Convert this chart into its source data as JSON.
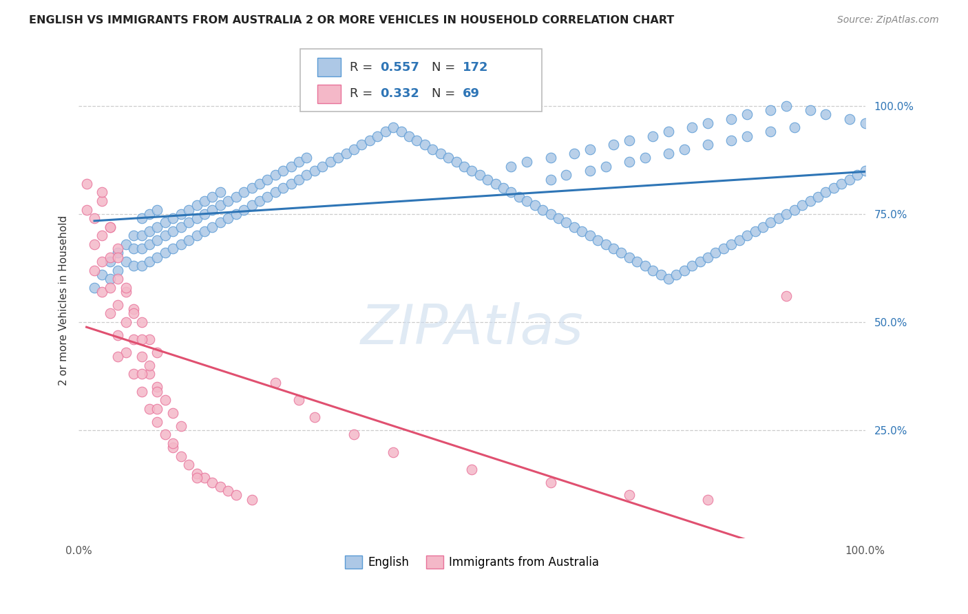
{
  "title": "ENGLISH VS IMMIGRANTS FROM AUSTRALIA 2 OR MORE VEHICLES IN HOUSEHOLD CORRELATION CHART",
  "source": "Source: ZipAtlas.com",
  "ylabel": "2 or more Vehicles in Household",
  "xlim": [
    0,
    100
  ],
  "ylim": [
    0,
    110
  ],
  "ytick_positions": [
    25,
    50,
    75,
    100
  ],
  "ytick_labels": [
    "25.0%",
    "50.0%",
    "75.0%",
    "100.0%"
  ],
  "grid_color": "#cccccc",
  "background_color": "#ffffff",
  "blue_color": "#adc8e6",
  "blue_edge": "#5b9bd5",
  "pink_color": "#f4b8c8",
  "pink_edge": "#e8729a",
  "blue_line_color": "#2e75b6",
  "pink_line_color": "#e05070",
  "legend_R_blue": "0.557",
  "legend_N_blue": "172",
  "legend_R_pink": "0.332",
  "legend_N_pink": "69",
  "english_x": [
    2,
    3,
    4,
    4,
    5,
    5,
    6,
    6,
    7,
    7,
    7,
    8,
    8,
    8,
    8,
    9,
    9,
    9,
    9,
    10,
    10,
    10,
    10,
    11,
    11,
    11,
    12,
    12,
    12,
    13,
    13,
    13,
    14,
    14,
    14,
    15,
    15,
    15,
    16,
    16,
    16,
    17,
    17,
    17,
    18,
    18,
    18,
    19,
    19,
    20,
    20,
    21,
    21,
    22,
    22,
    23,
    23,
    24,
    24,
    25,
    25,
    26,
    26,
    27,
    27,
    28,
    28,
    29,
    29,
    30,
    31,
    32,
    33,
    34,
    35,
    36,
    37,
    38,
    39,
    40,
    41,
    42,
    43,
    44,
    45,
    46,
    47,
    48,
    49,
    50,
    51,
    52,
    53,
    54,
    55,
    56,
    57,
    58,
    59,
    60,
    61,
    62,
    63,
    64,
    65,
    66,
    67,
    68,
    69,
    70,
    71,
    72,
    73,
    74,
    75,
    76,
    77,
    78,
    79,
    80,
    81,
    82,
    83,
    84,
    85,
    86,
    87,
    88,
    89,
    90,
    91,
    92,
    93,
    94,
    95,
    96,
    97,
    98,
    99,
    100,
    55,
    57,
    60,
    63,
    65,
    68,
    70,
    73,
    75,
    78,
    80,
    83,
    85,
    88,
    90,
    93,
    95,
    98,
    100,
    91,
    88,
    85,
    83,
    80,
    77,
    75,
    72,
    70,
    67,
    65,
    62,
    60
  ],
  "english_y": [
    58,
    61,
    60,
    64,
    62,
    66,
    64,
    68,
    63,
    67,
    70,
    63,
    67,
    70,
    74,
    64,
    68,
    71,
    75,
    65,
    69,
    72,
    76,
    66,
    70,
    73,
    67,
    71,
    74,
    68,
    72,
    75,
    69,
    73,
    76,
    70,
    74,
    77,
    71,
    75,
    78,
    72,
    76,
    79,
    73,
    77,
    80,
    74,
    78,
    75,
    79,
    76,
    80,
    77,
    81,
    78,
    82,
    79,
    83,
    80,
    84,
    81,
    85,
    82,
    86,
    83,
    87,
    84,
    88,
    85,
    86,
    87,
    88,
    89,
    90,
    91,
    92,
    93,
    94,
    95,
    94,
    93,
    92,
    91,
    90,
    89,
    88,
    87,
    86,
    85,
    84,
    83,
    82,
    81,
    80,
    79,
    78,
    77,
    76,
    75,
    74,
    73,
    72,
    71,
    70,
    69,
    68,
    67,
    66,
    65,
    64,
    63,
    62,
    61,
    60,
    61,
    62,
    63,
    64,
    65,
    66,
    67,
    68,
    69,
    70,
    71,
    72,
    73,
    74,
    75,
    76,
    77,
    78,
    79,
    80,
    81,
    82,
    83,
    84,
    85,
    86,
    87,
    88,
    89,
    90,
    91,
    92,
    93,
    94,
    95,
    96,
    97,
    98,
    99,
    100,
    99,
    98,
    97,
    96,
    95,
    94,
    93,
    92,
    91,
    90,
    89,
    88,
    87,
    86,
    85,
    84,
    83
  ],
  "immigrant_x": [
    1,
    1,
    2,
    2,
    2,
    3,
    3,
    3,
    3,
    4,
    4,
    4,
    4,
    5,
    5,
    5,
    5,
    6,
    6,
    6,
    7,
    7,
    7,
    8,
    8,
    8,
    9,
    9,
    9,
    10,
    10,
    10,
    11,
    11,
    12,
    12,
    13,
    13,
    14,
    15,
    16,
    17,
    18,
    19,
    20,
    22,
    25,
    28,
    30,
    35,
    40,
    50,
    60,
    70,
    80,
    90,
    5,
    8,
    10,
    12,
    15,
    3,
    4,
    5,
    6,
    7,
    8,
    9,
    10
  ],
  "immigrant_y": [
    76,
    82,
    62,
    68,
    74,
    57,
    64,
    70,
    78,
    52,
    58,
    65,
    72,
    47,
    54,
    60,
    67,
    43,
    50,
    57,
    38,
    46,
    53,
    34,
    42,
    50,
    30,
    38,
    46,
    27,
    35,
    43,
    24,
    32,
    21,
    29,
    19,
    26,
    17,
    15,
    14,
    13,
    12,
    11,
    10,
    9,
    36,
    32,
    28,
    24,
    20,
    16,
    13,
    10,
    9,
    56,
    42,
    38,
    30,
    22,
    14,
    80,
    72,
    65,
    58,
    52,
    46,
    40,
    34
  ]
}
